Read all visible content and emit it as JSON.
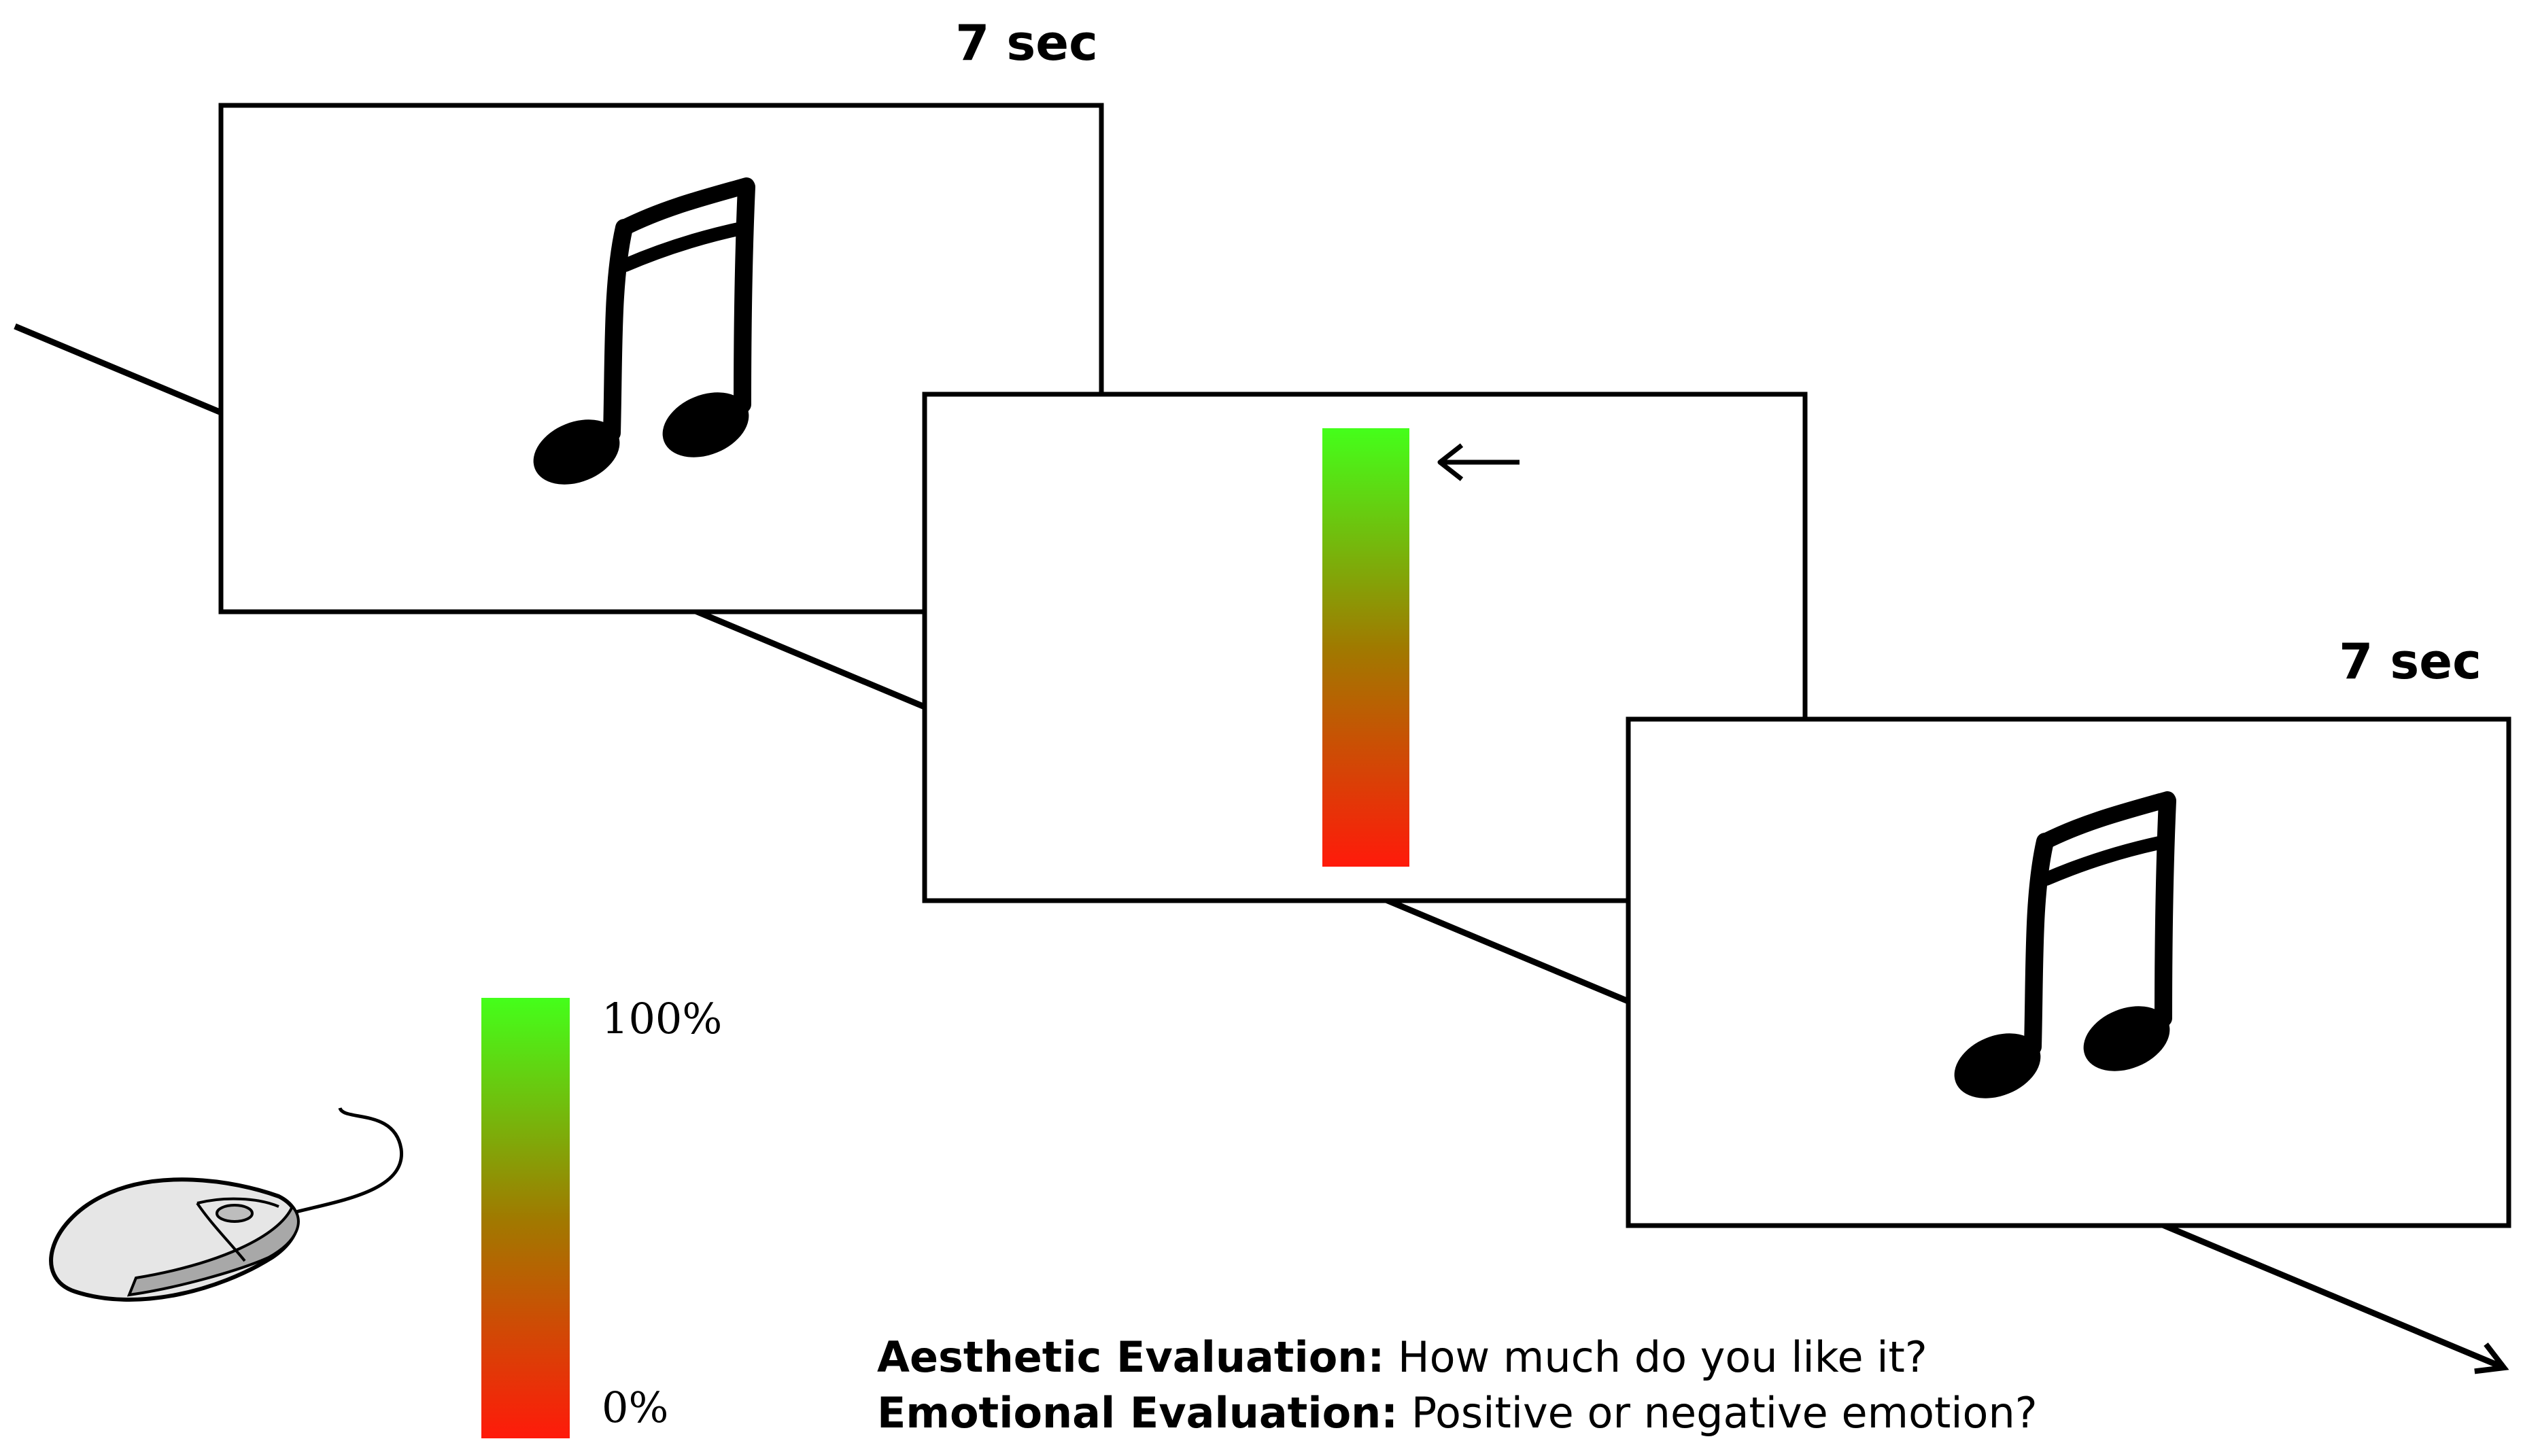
{
  "timing": {
    "first_screen": "7 sec",
    "third_screen": "7 sec"
  },
  "scale": {
    "top_label": "100%",
    "bottom_label": "0%",
    "top_color": "#44ff1a",
    "mid_color": "#a07a00",
    "bottom_color": "#ff1a0a"
  },
  "icons": {
    "stimulus": "music-note-icon",
    "cursor": "left-arrow-icon",
    "input_device": "mouse-icon",
    "timeline": "timeline-arrow"
  },
  "questions": [
    {
      "label": "Aesthetic Evaluation:",
      "text": " How much do you like it?"
    },
    {
      "label": "Emotional Evaluation:",
      "text": " Positive or negative emotion?"
    }
  ]
}
